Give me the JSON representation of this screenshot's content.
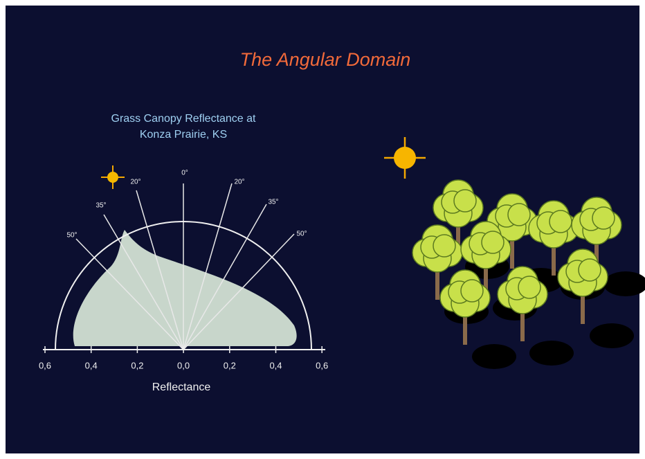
{
  "title": "The Angular Domain",
  "subtitle": [
    "Grass Canopy Reflectance at",
    "Konza Prairie, KS"
  ],
  "angle_labels": [
    "50°",
    "35°",
    "20°",
    "0°",
    "20°",
    "35°",
    "50°"
  ],
  "axis": {
    "tick_labels": [
      "0,6",
      "0,4",
      "0,2",
      "0,0",
      "0,2",
      "0,4",
      "0,6"
    ],
    "label": "Reflectance"
  }
}
